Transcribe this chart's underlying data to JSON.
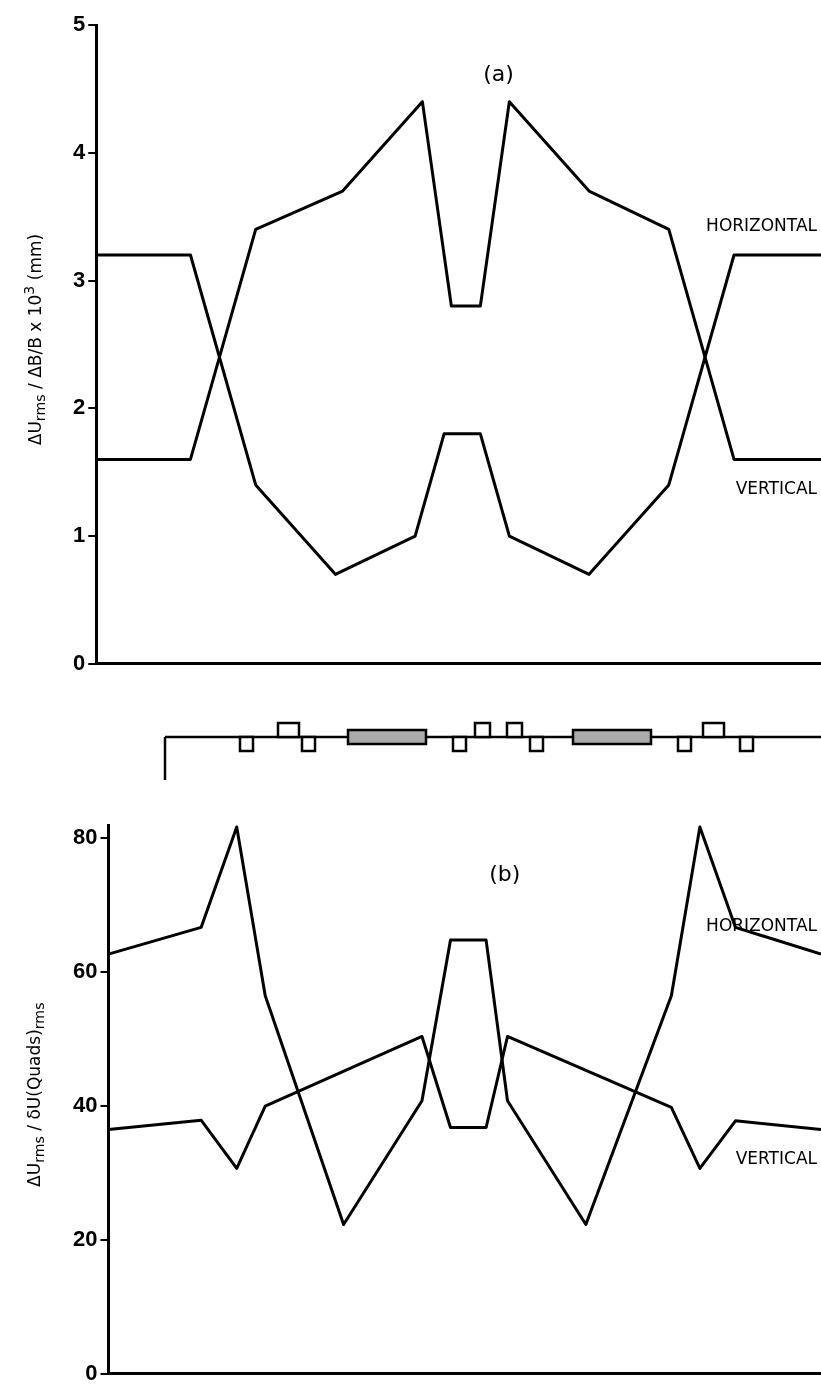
{
  "chart_data": [
    {
      "type": "line",
      "annotations": [
        "(a)"
      ],
      "ylabel": "ΔU$_{rms}$ / ΔB/B x 10$^{3}$ (mm)",
      "categories": [
        null,
        null,
        null,
        null,
        null,
        null,
        null,
        null,
        null,
        null,
        null,
        null,
        null,
        null,
        null,
        null,
        null,
        null,
        null,
        null,
        null,
        null,
        null,
        null,
        null,
        null,
        null,
        null,
        null,
        null,
        null,
        null,
        null,
        null,
        null,
        null,
        null,
        null,
        null,
        null,
        null,
        null,
        null,
        null,
        null,
        null,
        null,
        null,
        null,
        null,
        null,
        null,
        null,
        null,
        null,
        null,
        null,
        null,
        null,
        null,
        null,
        null,
        null,
        null,
        null,
        null,
        null,
        null,
        null,
        null,
        null,
        null,
        null,
        null,
        null,
        null,
        null,
        null,
        null,
        null,
        null,
        null,
        null,
        null,
        null,
        null,
        null,
        null,
        null,
        null,
        null,
        null,
        null,
        null,
        null,
        null,
        null,
        null,
        null,
        null,
        null
      ],
      "ylim": [
        0,
        5
      ],
      "yticks": [
        0,
        1,
        2,
        3,
        4,
        5
      ],
      "tick_labels": "y",
      "grid": false,
      "legend": false,
      "marker": "none",
      "line_style": "solid",
      "series": [
        {
          "name": "VERTICAL",
          "color": "#000000",
          "values": [
            1.6,
            null,
            null,
            null,
            null,
            null,
            null,
            null,
            null,
            null,
            null,
            null,
            null,
            1.6,
            null,
            null,
            null,
            null,
            null,
            null,
            null,
            null,
            3.4,
            null,
            null,
            null,
            null,
            null,
            null,
            null,
            null,
            null,
            null,
            null,
            3.7,
            null,
            null,
            null,
            null,
            null,
            null,
            null,
            null,
            null,
            null,
            4.4,
            null,
            null,
            null,
            2.8,
            null,
            null,
            null,
            2.8,
            null,
            null,
            null,
            4.4,
            null,
            null,
            null,
            null,
            null,
            null,
            null,
            null,
            null,
            null,
            3.7,
            null,
            null,
            null,
            null,
            null,
            null,
            null,
            null,
            null,
            null,
            3.4,
            null,
            null,
            null,
            null,
            null,
            null,
            null,
            null,
            1.6,
            null,
            null,
            null,
            null,
            null,
            null,
            null,
            null,
            null,
            null,
            null,
            1.6
          ]
        },
        {
          "name": "HORIZONTAL",
          "color": "#000000",
          "values": [
            3.2,
            null,
            null,
            null,
            null,
            null,
            null,
            null,
            null,
            null,
            null,
            null,
            null,
            3.2,
            null,
            null,
            null,
            null,
            null,
            null,
            null,
            null,
            1.4,
            null,
            null,
            null,
            null,
            null,
            null,
            null,
            null,
            null,
            null,
            0.7,
            null,
            null,
            null,
            null,
            null,
            null,
            null,
            null,
            null,
            null,
            1.0,
            null,
            null,
            null,
            1.8,
            null,
            null,
            null,
            null,
            1.8,
            null,
            null,
            null,
            1.0,
            null,
            null,
            null,
            null,
            null,
            null,
            null,
            null,
            null,
            null,
            0.7,
            null,
            null,
            null,
            null,
            null,
            null,
            null,
            null,
            null,
            null,
            1.4,
            null,
            null,
            null,
            null,
            null,
            null,
            null,
            null,
            3.2,
            null,
            null,
            null,
            null,
            null,
            null,
            null,
            null,
            null,
            null,
            null,
            3.2
          ]
        }
      ]
    },
    {
      "type": "line",
      "annotations": [
        "(b)"
      ],
      "ylabel": "ΔU$_{rms}$ / δU(Quads)$_{rms}$",
      "categories": [
        null,
        null,
        null,
        null,
        null,
        null,
        null,
        null,
        null,
        null,
        null,
        null,
        null,
        null,
        null,
        null,
        null,
        null,
        null,
        null,
        null,
        null,
        null,
        null,
        null,
        null,
        null,
        null,
        null,
        null,
        null,
        null,
        null,
        null,
        null,
        null,
        null,
        null,
        null,
        null,
        null,
        null,
        null,
        null,
        null,
        null,
        null,
        null,
        null,
        null,
        null,
        null,
        null,
        null,
        null,
        null,
        null,
        null,
        null,
        null,
        null,
        null,
        null,
        null,
        null,
        null,
        null,
        null,
        null,
        null,
        null,
        null,
        null,
        null,
        null,
        null,
        null,
        null,
        null,
        null,
        null,
        null,
        null,
        null,
        null,
        null,
        null,
        null,
        null,
        null,
        null,
        null,
        null,
        null,
        null,
        null,
        null,
        null,
        null,
        null,
        null
      ],
      "ylim": [
        0,
        82
      ],
      "yticks": [
        0,
        20,
        40,
        60,
        80
      ],
      "tick_labels": "y",
      "grid": false,
      "legend": false,
      "marker": "none",
      "line_style": "solid",
      "series": [
        {
          "name": "HORIZONTAL",
          "color": "#000000",
          "values": [
            62.7,
            null,
            null,
            null,
            null,
            null,
            null,
            null,
            null,
            null,
            null,
            null,
            null,
            66.7,
            null,
            null,
            null,
            null,
            81.7,
            null,
            null,
            null,
            56.5,
            null,
            null,
            null,
            null,
            null,
            null,
            null,
            null,
            null,
            null,
            22.3,
            null,
            null,
            null,
            null,
            null,
            null,
            null,
            null,
            null,
            null,
            40.8,
            null,
            null,
            null,
            64.8,
            null,
            null,
            null,
            null,
            64.8,
            null,
            null,
            40.8,
            null,
            null,
            null,
            null,
            null,
            null,
            null,
            null,
            null,
            null,
            22.3,
            null,
            null,
            null,
            null,
            null,
            null,
            null,
            null,
            null,
            null,
            null,
            56.5,
            null,
            null,
            null,
            81.7,
            null,
            null,
            null,
            null,
            66.7,
            null,
            null,
            null,
            null,
            null,
            null,
            null,
            null,
            null,
            null,
            null,
            62.7
          ]
        },
        {
          "name": "VERTICAL",
          "color": "#000000",
          "values": [
            36.5,
            null,
            null,
            null,
            null,
            null,
            null,
            null,
            null,
            null,
            null,
            null,
            null,
            37.9,
            null,
            null,
            null,
            null,
            30.7,
            null,
            null,
            null,
            40,
            null,
            null,
            null,
            null,
            null,
            null,
            null,
            null,
            null,
            null,
            null,
            null,
            null,
            null,
            null,
            null,
            null,
            null,
            null,
            null,
            null,
            50.4,
            null,
            null,
            null,
            36.8,
            null,
            null,
            null,
            null,
            36.8,
            null,
            null,
            50.4,
            null,
            null,
            null,
            null,
            null,
            null,
            null,
            null,
            null,
            null,
            null,
            null,
            null,
            null,
            null,
            null,
            null,
            null,
            null,
            null,
            null,
            null,
            39.8,
            null,
            null,
            null,
            30.7,
            null,
            null,
            null,
            null,
            37.8,
            null,
            null,
            null,
            null,
            null,
            null,
            null,
            null,
            null,
            null,
            null,
            36.5
          ]
        }
      ]
    }
  ]
}
